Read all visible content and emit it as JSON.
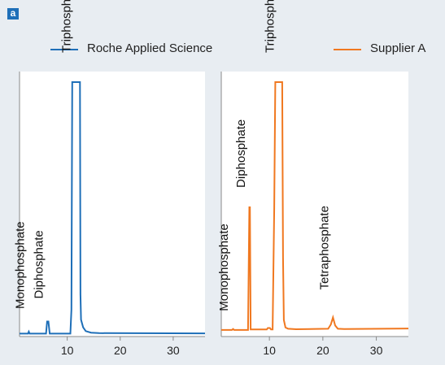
{
  "panel_label": "a",
  "colors": {
    "background": "#e8edf2",
    "panel": "#ffffff",
    "roche": "#1e6fb8",
    "supplier": "#f07820",
    "axis": "#8a8a8a",
    "badge": "#1e6fb8"
  },
  "legend": [
    {
      "label": "Roche Applied Science",
      "color": "#1e6fb8"
    },
    {
      "label": "Supplier A",
      "color": "#f07820"
    }
  ],
  "chart_data": [
    {
      "type": "line",
      "series_name": "Roche Applied Science",
      "color": "#1e6fb8",
      "xlim": [
        1,
        36
      ],
      "ylim": [
        0,
        100
      ],
      "xticks": [
        10,
        20,
        30
      ],
      "x": [
        1,
        2.6,
        2.75,
        2.9,
        6.0,
        6.2,
        6.45,
        6.7,
        10.6,
        10.8,
        10.95,
        11.1,
        12.4,
        12.5,
        12.6,
        13.0,
        13.5,
        14.5,
        16,
        36
      ],
      "y": [
        0.5,
        0.5,
        1.3,
        0.5,
        0.5,
        5.3,
        5.3,
        0.5,
        0.5,
        10,
        100,
        100,
        100,
        16,
        6,
        3,
        1.5,
        0.9,
        0.7,
        0.6
      ],
      "peaks": [
        {
          "label": "Monophosphate",
          "x": 2.75,
          "y": 1.3
        },
        {
          "label": "Diphosphate",
          "x": 6.3,
          "y": 5.3
        },
        {
          "label": "Triphosphate",
          "x": 11.5,
          "y": 100
        }
      ]
    },
    {
      "type": "line",
      "series_name": "Supplier A",
      "color": "#f07820",
      "xlim": [
        1,
        36
      ],
      "ylim": [
        0,
        100
      ],
      "xticks": [
        10,
        20,
        30
      ],
      "x": [
        1,
        3,
        3.2,
        3.4,
        6.0,
        6.25,
        6.35,
        6.5,
        9.5,
        9.7,
        10.1,
        10.3,
        10.6,
        10.9,
        11.1,
        12.4,
        12.55,
        12.7,
        13.0,
        13.5,
        15,
        21,
        21.5,
        21.9,
        22.3,
        22.8,
        24,
        36
      ],
      "y": [
        1,
        1,
        1.4,
        1,
        1,
        50,
        50,
        1.2,
        1.2,
        1.8,
        1.8,
        1.2,
        1.2,
        50,
        100,
        100,
        30,
        5,
        2,
        1.5,
        1.3,
        1.5,
        3.2,
        6,
        2.8,
        1.5,
        1.4,
        1.6
      ],
      "peaks": [
        {
          "label": "Monophosphate",
          "x": 3.1,
          "y": 1.4
        },
        {
          "label": "Diphosphate",
          "x": 6.3,
          "y": 50
        },
        {
          "label": "Triphosphate",
          "x": 11.7,
          "y": 100
        },
        {
          "label": "Tetraphosphate",
          "x": 21.9,
          "y": 6
        }
      ]
    }
  ]
}
